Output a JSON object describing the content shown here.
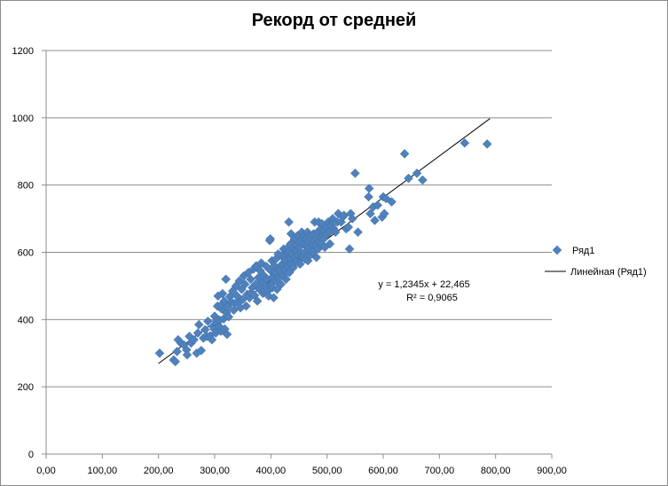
{
  "chart_data": {
    "type": "scatter",
    "title": "Рекорд от средней",
    "xlabel": "",
    "ylabel": "",
    "xlim": [
      0,
      900
    ],
    "ylim": [
      0,
      1200
    ],
    "x_ticks": [
      0,
      100,
      200,
      300,
      400,
      500,
      600,
      700,
      800,
      900
    ],
    "y_ticks": [
      0,
      200,
      400,
      600,
      800,
      1000,
      1200
    ],
    "x_tick_labels": [
      "0,00",
      "100,00",
      "200,00",
      "300,00",
      "400,00",
      "500,00",
      "600,00",
      "700,00",
      "800,00",
      "900,00"
    ],
    "y_tick_labels": [
      "0",
      "200",
      "400",
      "600",
      "800",
      "1000",
      "1200"
    ],
    "grid": "horizontal",
    "legend_position": "right",
    "series": [
      {
        "name": "Ряд1",
        "color": "#4f81bd",
        "marker": "diamond",
        "points": [
          [
            202,
            300
          ],
          [
            227,
            280
          ],
          [
            230,
            275
          ],
          [
            233,
            305
          ],
          [
            235,
            340
          ],
          [
            240,
            330
          ],
          [
            245,
            325
          ],
          [
            250,
            310
          ],
          [
            251,
            295
          ],
          [
            255,
            350
          ],
          [
            258,
            330
          ],
          [
            263,
            340
          ],
          [
            268,
            300
          ],
          [
            270,
            360
          ],
          [
            272,
            385
          ],
          [
            276,
            308
          ],
          [
            280,
            345
          ],
          [
            283,
            370
          ],
          [
            286,
            350
          ],
          [
            288,
            395
          ],
          [
            292,
            352
          ],
          [
            295,
            340
          ],
          [
            297,
            380
          ],
          [
            299,
            372
          ],
          [
            300,
            410
          ],
          [
            302,
            360
          ],
          [
            303,
            395
          ],
          [
            305,
            440
          ],
          [
            306,
            470
          ],
          [
            308,
            380
          ],
          [
            309,
            398
          ],
          [
            311,
            365
          ],
          [
            312,
            432
          ],
          [
            313,
            445
          ],
          [
            314,
            477
          ],
          [
            316,
            402
          ],
          [
            317,
            455
          ],
          [
            318,
            372
          ],
          [
            320,
            520
          ],
          [
            321,
            420
          ],
          [
            322,
            356
          ],
          [
            323,
            438
          ],
          [
            325,
            408
          ],
          [
            327,
            468
          ],
          [
            330,
            452
          ],
          [
            332,
            485
          ],
          [
            334,
            428
          ],
          [
            336,
            448
          ],
          [
            338,
            500
          ],
          [
            340,
            470
          ],
          [
            342,
            450
          ],
          [
            344,
            515
          ],
          [
            346,
            435
          ],
          [
            348,
            490
          ],
          [
            350,
            460
          ],
          [
            352,
            530
          ],
          [
            354,
            505
          ],
          [
            356,
            440
          ],
          [
            358,
            475
          ],
          [
            360,
            540
          ],
          [
            362,
            465
          ],
          [
            364,
            520
          ],
          [
            365,
            480
          ],
          [
            367,
            495
          ],
          [
            369,
            550
          ],
          [
            371,
            472
          ],
          [
            373,
            505
          ],
          [
            374,
            560
          ],
          [
            376,
            455
          ],
          [
            378,
            525
          ],
          [
            380,
            490
          ],
          [
            381,
            545
          ],
          [
            383,
            568
          ],
          [
            385,
            510
          ],
          [
            386,
            478
          ],
          [
            388,
            530
          ],
          [
            390,
            500
          ],
          [
            392,
            558
          ],
          [
            393,
            520
          ],
          [
            395,
            485
          ],
          [
            396,
            470
          ],
          [
            398,
            635
          ],
          [
            399,
            640
          ],
          [
            400,
            545
          ],
          [
            401,
            505
          ],
          [
            402,
            575
          ],
          [
            403,
            495
          ],
          [
            404,
            528
          ],
          [
            405,
            465
          ],
          [
            406,
            560
          ],
          [
            408,
            540
          ],
          [
            409,
            580
          ],
          [
            410,
            515
          ],
          [
            411,
            490
          ],
          [
            413,
            595
          ],
          [
            414,
            525
          ],
          [
            415,
            555
          ],
          [
            416,
            545
          ],
          [
            418,
            505
          ],
          [
            419,
            590
          ],
          [
            420,
            565
          ],
          [
            422,
            530
          ],
          [
            423,
            610
          ],
          [
            424,
            585
          ],
          [
            425,
            548
          ],
          [
            426,
            575
          ],
          [
            427,
            520
          ],
          [
            428,
            610
          ],
          [
            430,
            560
          ],
          [
            431,
            600
          ],
          [
            432,
            690
          ],
          [
            433,
            540
          ],
          [
            434,
            580
          ],
          [
            435,
            625
          ],
          [
            436,
            655
          ],
          [
            437,
            565
          ],
          [
            438,
            595
          ],
          [
            440,
            555
          ],
          [
            441,
            610
          ],
          [
            442,
            640
          ],
          [
            443,
            585
          ],
          [
            444,
            570
          ],
          [
            445,
            620
          ],
          [
            446,
            605
          ],
          [
            447,
            575
          ],
          [
            448,
            650
          ],
          [
            449,
            590
          ],
          [
            450,
            615
          ],
          [
            452,
            565
          ],
          [
            453,
            635
          ],
          [
            454,
            598
          ],
          [
            455,
            660
          ],
          [
            456,
            585
          ],
          [
            458,
            625
          ],
          [
            459,
            645
          ],
          [
            460,
            600
          ],
          [
            461,
            580
          ],
          [
            462,
            640
          ],
          [
            463,
            620
          ],
          [
            464,
            605
          ],
          [
            465,
            660
          ],
          [
            466,
            575
          ],
          [
            467,
            630
          ],
          [
            468,
            615
          ],
          [
            469,
            590
          ],
          [
            470,
            650
          ],
          [
            471,
            605
          ],
          [
            472,
            640
          ],
          [
            474,
            625
          ],
          [
            475,
            600
          ],
          [
            476,
            655
          ],
          [
            477,
            635
          ],
          [
            478,
            690
          ],
          [
            480,
            620
          ],
          [
            481,
            585
          ],
          [
            482,
            645
          ],
          [
            483,
            660
          ],
          [
            484,
            610
          ],
          [
            485,
            690
          ],
          [
            486,
            630
          ],
          [
            488,
            645
          ],
          [
            489,
            670
          ],
          [
            490,
            625
          ],
          [
            491,
            685
          ],
          [
            492,
            650
          ],
          [
            494,
            640
          ],
          [
            495,
            665
          ],
          [
            496,
            615
          ],
          [
            498,
            675
          ],
          [
            500,
            655
          ],
          [
            502,
            690
          ],
          [
            504,
            660
          ],
          [
            505,
            625
          ],
          [
            507,
            680
          ],
          [
            510,
            700
          ],
          [
            512,
            670
          ],
          [
            515,
            660
          ],
          [
            518,
            690
          ],
          [
            520,
            715
          ],
          [
            525,
            690
          ],
          [
            528,
            705
          ],
          [
            530,
            710
          ],
          [
            534,
            670
          ],
          [
            538,
            675
          ],
          [
            540,
            610
          ],
          [
            542,
            715
          ],
          [
            545,
            700
          ],
          [
            550,
            835
          ],
          [
            555,
            660
          ],
          [
            574,
            765
          ],
          [
            575,
            790
          ],
          [
            577,
            715
          ],
          [
            582,
            735
          ],
          [
            585,
            695
          ],
          [
            590,
            740
          ],
          [
            598,
            705
          ],
          [
            600,
            765
          ],
          [
            602,
            715
          ],
          [
            605,
            760
          ],
          [
            615,
            750
          ],
          [
            638,
            893
          ],
          [
            645,
            820
          ],
          [
            660,
            835
          ],
          [
            670,
            815
          ],
          [
            745,
            925
          ],
          [
            785,
            922
          ]
        ]
      }
    ],
    "trendline": {
      "name": "Линейная (Ряд1)",
      "color": "#000000",
      "slope": 1.2345,
      "intercept": 22.465,
      "x_range": [
        200,
        790
      ],
      "equation": "y = 1,2345x + 22,465",
      "r_squared": "R² = 0,9065"
    }
  }
}
